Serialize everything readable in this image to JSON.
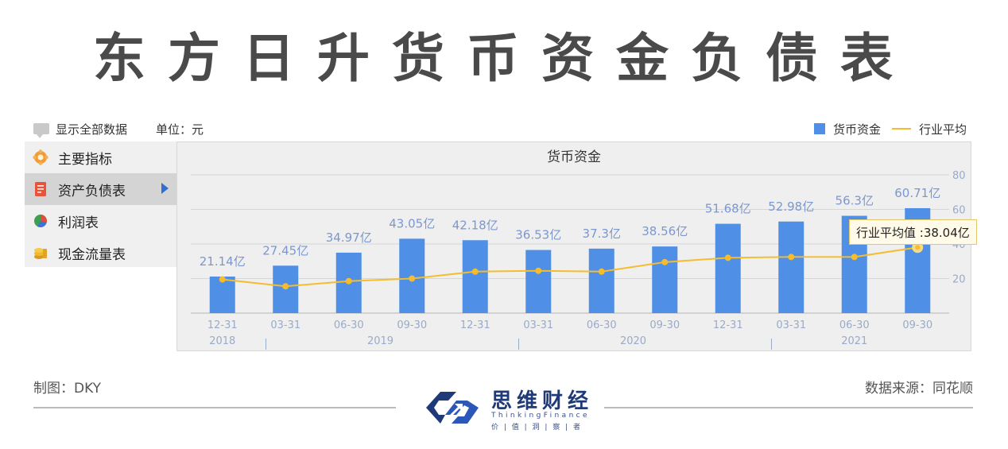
{
  "title": "东方日升货币资金负债表",
  "toolbar": {
    "show_all": "显示全部数据",
    "unit": "单位：元"
  },
  "legend": {
    "bar_label": "货币资金",
    "line_label": "行业平均"
  },
  "sidebar": {
    "items": [
      {
        "label": "主要指标",
        "icon": "gear-flower-icon"
      },
      {
        "label": "资产负债表",
        "icon": "document-icon",
        "active": true
      },
      {
        "label": "利润表",
        "icon": "pie-icon"
      },
      {
        "label": "现金流量表",
        "icon": "coins-icon"
      }
    ]
  },
  "tooltip": {
    "text": "行业平均值 :38.04亿"
  },
  "footer": {
    "left": "制图：DKY",
    "right": "数据来源：同花顺"
  },
  "logo": {
    "name": "思维财经",
    "english": "ThinkingFinance",
    "slogan": "价 | 值 | 洞 | 察 | 者"
  },
  "colors": {
    "bar": "#4f8fe6",
    "line": "#f5bd2e"
  },
  "chart_data": {
    "type": "bar",
    "title": "货币资金",
    "categories": [
      "12-31",
      "03-31",
      "06-30",
      "09-30",
      "12-31",
      "03-31",
      "06-30",
      "09-30",
      "12-31",
      "03-31",
      "06-30",
      "09-30"
    ],
    "year_groups": [
      {
        "label": "2018",
        "count": 1
      },
      {
        "label": "2019",
        "count": 4
      },
      {
        "label": "2020",
        "count": 4
      },
      {
        "label": "2021",
        "count": 3
      }
    ],
    "series": [
      {
        "name": "货币资金",
        "type": "bar",
        "values": [
          21.14,
          27.45,
          34.97,
          43.05,
          42.18,
          36.53,
          37.3,
          38.56,
          51.68,
          52.98,
          56.3,
          60.71
        ],
        "labels": [
          "21.14亿",
          "27.45亿",
          "34.97亿",
          "43.05亿",
          "42.18亿",
          "36.53亿",
          "37.3亿",
          "38.56亿",
          "51.68亿",
          "52.98亿",
          "56.3亿",
          "60.71亿"
        ]
      },
      {
        "name": "行业平均",
        "type": "line",
        "values": [
          19.5,
          15.5,
          18.5,
          20,
          24,
          24.5,
          24,
          29.5,
          32,
          32.5,
          32.5,
          38.04
        ]
      }
    ],
    "yticks": [
      20,
      40,
      60,
      80
    ],
    "ylim": [
      0,
      80
    ],
    "grid": true,
    "legend_position": "top-right"
  }
}
